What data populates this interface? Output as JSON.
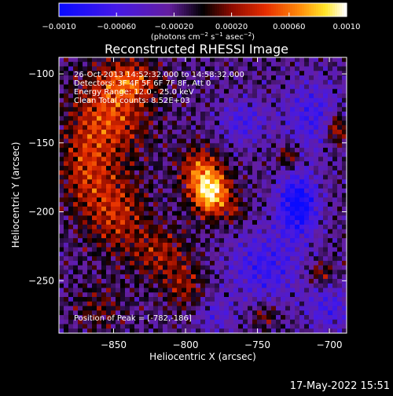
{
  "chart_data": {
    "type": "heatmap",
    "title": "Reconstructed RHESSI Image",
    "xlabel": "Heliocentric X (arcsec)",
    "ylabel": "Heliocentric Y (arcsec)",
    "xlim": [
      -888,
      -688
    ],
    "ylim": [
      -288,
      -88
    ],
    "x_ticks": [
      -850,
      -800,
      -750,
      -700
    ],
    "x_tick_labels": [
      "−850",
      "−800",
      "−750",
      "−700"
    ],
    "y_ticks": [
      -100,
      -150,
      -200,
      -250
    ],
    "y_tick_labels": [
      "−100",
      "−150",
      "−200",
      "−250"
    ],
    "colorbar": {
      "range": [
        -0.001,
        0.001
      ],
      "tick_values": [
        -0.001,
        -0.0006,
        -0.0002,
        0.0002,
        0.0006,
        0.001
      ],
      "tick_labels": [
        "−0.0010",
        "−0.00060",
        "−0.00020",
        "0.00020",
        "0.00060",
        "0.0010"
      ],
      "unit_label": "(photons cm",
      "unit_exp1": "−2",
      "unit_mid": " s",
      "unit_exp2": "−1",
      "unit_end": " asec",
      "unit_exp3": "−2",
      "unit_close": ")"
    },
    "annotations": {
      "time_range": "26-Oct-2013 14:52:32.000 to 14:58:32.000",
      "detectors": "Detectors: 3F 4F 5F 6F 7F 8F, Att 0",
      "energy": "Energy Range: 12.0 - 25.0 keV",
      "clean": "Clean    Total counts: 8.52E+03",
      "peak": "Position of Peak = [-782,-186]"
    },
    "peak": {
      "x": -782,
      "y": -186
    },
    "sources": [
      {
        "x": -782,
        "y": -187,
        "sx": 9,
        "sy": 11,
        "amp": 0.00105
      },
      {
        "x": -790,
        "y": -170,
        "sx": 10,
        "sy": 12,
        "amp": 0.0006
      },
      {
        "x": -852,
        "y": -130,
        "sx": 18,
        "sy": 22,
        "amp": 0.0006
      },
      {
        "x": -838,
        "y": -105,
        "sx": 14,
        "sy": 10,
        "amp": 0.0005
      },
      {
        "x": -870,
        "y": -170,
        "sx": 12,
        "sy": 22,
        "amp": 0.00045
      },
      {
        "x": -848,
        "y": -200,
        "sx": 14,
        "sy": 20,
        "amp": 0.0005
      },
      {
        "x": -818,
        "y": -230,
        "sx": 14,
        "sy": 14,
        "amp": 0.0004
      },
      {
        "x": -800,
        "y": -255,
        "sx": 10,
        "sy": 12,
        "amp": 0.00035
      },
      {
        "x": -860,
        "y": -270,
        "sx": 12,
        "sy": 12,
        "amp": 0.00025
      },
      {
        "x": -722,
        "y": -195,
        "sx": 10,
        "sy": 16,
        "amp": -0.00085
      },
      {
        "x": -745,
        "y": -240,
        "sx": 18,
        "sy": 18,
        "amp": -0.0005
      },
      {
        "x": -712,
        "y": -130,
        "sx": 14,
        "sy": 18,
        "amp": -0.00045
      },
      {
        "x": -760,
        "y": -135,
        "sx": 12,
        "sy": 12,
        "amp": -0.0004
      },
      {
        "x": -700,
        "y": -270,
        "sx": 12,
        "sy": 12,
        "amp": -0.0004
      },
      {
        "x": -780,
        "y": -275,
        "sx": 10,
        "sy": 10,
        "amp": -0.0003
      },
      {
        "x": -695,
        "y": -140,
        "sx": 5,
        "sy": 8,
        "amp": 0.0006
      },
      {
        "x": -728,
        "y": -160,
        "sx": 5,
        "sy": 6,
        "amp": 0.00045
      },
      {
        "x": -706,
        "y": -245,
        "sx": 6,
        "sy": 6,
        "amp": 0.0004
      },
      {
        "x": -745,
        "y": -275,
        "sx": 6,
        "sy": 6,
        "amp": 0.00035
      },
      {
        "x": -765,
        "y": -200,
        "sx": 5,
        "sy": 6,
        "amp": 0.0003
      }
    ]
  },
  "footer": {
    "timestamp": "17-May-2022 15:51"
  },
  "colors": {
    "background": "#000000",
    "text": "#ffffff"
  }
}
